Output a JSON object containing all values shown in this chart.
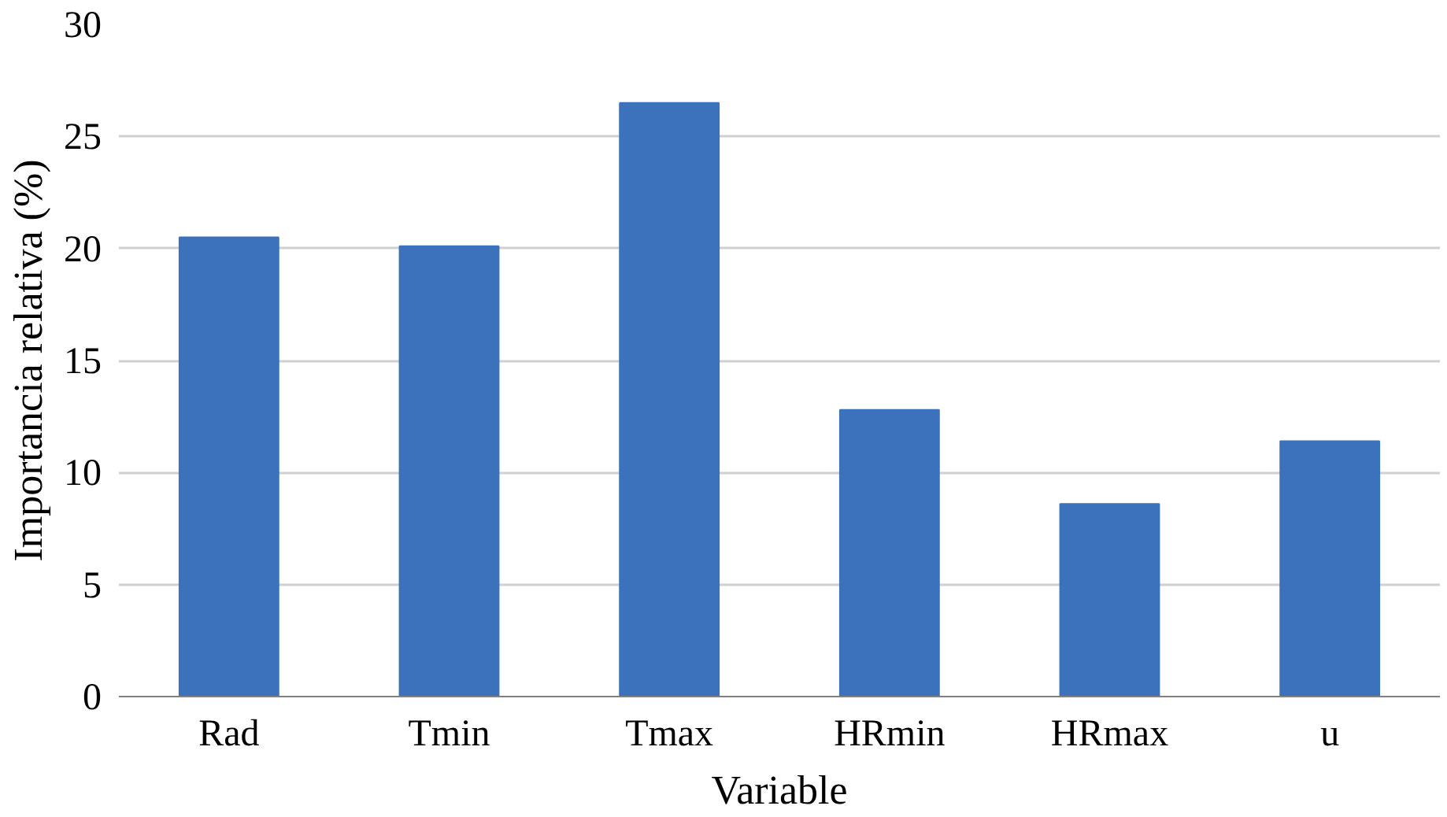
{
  "chart_data": {
    "type": "bar",
    "xlabel": "Variable",
    "ylabel": "Importancia relativa (%)",
    "categories": [
      "Rad",
      "Tmin",
      "Tmax",
      "HRmin",
      "HRmax",
      "u"
    ],
    "values": [
      20.5,
      20.1,
      26.5,
      12.8,
      8.6,
      11.4
    ],
    "color": "#3c72bc",
    "ylim": [
      0,
      30
    ],
    "yticks": [
      0,
      5,
      10,
      15,
      20,
      25,
      30
    ],
    "grid": "y"
  }
}
